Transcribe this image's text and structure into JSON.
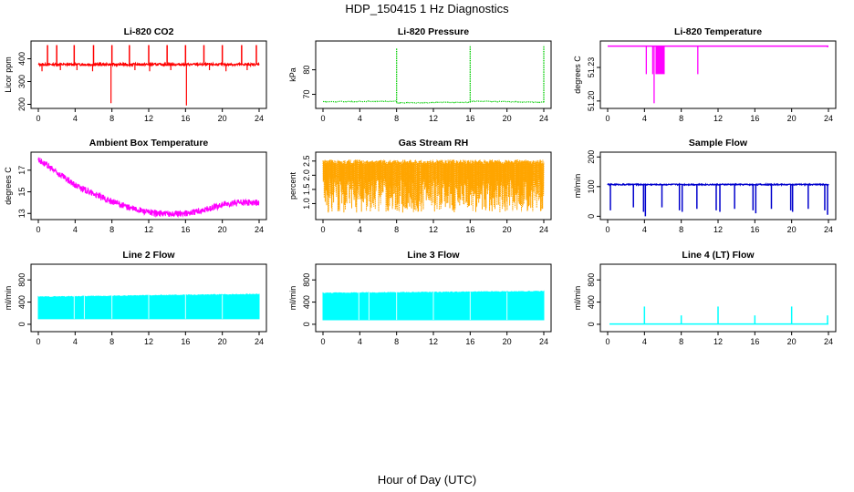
{
  "page": {
    "title": "HDP_150415  1 Hz Diagnostics",
    "xlabel": "Hour of Day (UTC)"
  },
  "chart_data": [
    {
      "id": "co2",
      "type": "line",
      "title": "Li-820 CO2",
      "ylabel": "Licor ppm",
      "xlim": [
        0,
        24
      ],
      "xticks": [
        0,
        4,
        8,
        12,
        16,
        20,
        24
      ],
      "ylim": [
        190,
        470
      ],
      "yticks": [
        200,
        300,
        400
      ],
      "color": "#ff0000",
      "baseline": 375,
      "noise": 5,
      "spikes": [
        [
          1.0,
          460
        ],
        [
          2.0,
          460
        ],
        [
          3.9,
          460
        ],
        [
          6.0,
          460
        ],
        [
          8.0,
          460
        ],
        [
          9.9,
          460
        ],
        [
          12.0,
          460
        ],
        [
          14.0,
          460
        ],
        [
          16.0,
          460
        ],
        [
          18.0,
          460
        ],
        [
          20.0,
          460
        ],
        [
          22.1,
          460
        ],
        [
          23.7,
          460
        ]
      ],
      "dips": [
        [
          0.4,
          345
        ],
        [
          2.4,
          350
        ],
        [
          4.2,
          350
        ],
        [
          5.9,
          345
        ],
        [
          7.9,
          205
        ],
        [
          10.5,
          350
        ],
        [
          12.1,
          345
        ],
        [
          14.4,
          350
        ],
        [
          16.1,
          195
        ],
        [
          18.6,
          350
        ],
        [
          20.4,
          345
        ],
        [
          22.7,
          350
        ]
      ]
    },
    {
      "id": "pressure",
      "type": "line",
      "title": "Li-820 Pressure",
      "ylabel": "kPa",
      "xlim": [
        0,
        24
      ],
      "xticks": [
        0,
        4,
        8,
        12,
        16,
        20,
        24
      ],
      "ylim": [
        65,
        91
      ],
      "yticks": [
        70,
        80
      ],
      "color": "#00cc00",
      "segments": [
        [
          0,
          8,
          67.0,
          67.2
        ],
        [
          8,
          16,
          66.5,
          66.8
        ],
        [
          16,
          24,
          67.2,
          66.8
        ]
      ],
      "spikes": [
        [
          8.0,
          89
        ],
        [
          16.0,
          90
        ],
        [
          24.0,
          90
        ]
      ]
    },
    {
      "id": "licor-temp",
      "type": "line",
      "title": "Li-820 Temperature",
      "ylabel": "degrees C",
      "xlim": [
        0,
        24
      ],
      "xticks": [
        0,
        4,
        8,
        12,
        16,
        20,
        24
      ],
      "ylim": [
        51.195,
        51.252
      ],
      "yticks": [
        51.2,
        51.23
      ],
      "color": "#ff00ff",
      "baseline": 51.249,
      "drops": [
        [
          4.2,
          51.224
        ],
        [
          4.9,
          51.224
        ],
        [
          5.05,
          51.198
        ],
        [
          9.8,
          51.224
        ],
        [
          23.9,
          51.248
        ]
      ],
      "block": [
        5.2,
        6.2,
        51.224
      ]
    },
    {
      "id": "ambient-temp",
      "type": "line",
      "title": "Ambient Box Temperature",
      "ylabel": "degrees C",
      "xlim": [
        0,
        24
      ],
      "xticks": [
        0,
        4,
        8,
        12,
        16,
        20,
        24
      ],
      "ylim": [
        12.6,
        18.5
      ],
      "yticks": [
        13,
        15,
        17
      ],
      "color": "#ff00ff",
      "trend": [
        [
          0,
          18.0
        ],
        [
          2,
          16.8
        ],
        [
          4,
          15.6
        ],
        [
          6,
          14.8
        ],
        [
          8,
          14.1
        ],
        [
          10,
          13.5
        ],
        [
          12,
          13.1
        ],
        [
          14,
          12.95
        ],
        [
          16,
          13.0
        ],
        [
          18,
          13.3
        ],
        [
          20,
          13.8
        ],
        [
          22,
          14.0
        ],
        [
          24,
          14.0
        ]
      ],
      "noise": 0.3
    },
    {
      "id": "gas-rh",
      "type": "line",
      "title": "Gas Stream RH",
      "ylabel": "percent",
      "xlim": [
        0,
        24
      ],
      "xticks": [
        0,
        4,
        8,
        12,
        16,
        20,
        24
      ],
      "ylim": [
        0.5,
        2.75
      ],
      "yticks": [
        1.0,
        1.5,
        2.0,
        2.5
      ],
      "color": "#ffa500",
      "top": 2.55,
      "low_mean": 1.4,
      "low_min": 0.6
    },
    {
      "id": "sample-flow",
      "type": "line",
      "title": "Sample Flow",
      "ylabel": "ml/min",
      "xlim": [
        0,
        24
      ],
      "xticks": [
        0,
        4,
        8,
        12,
        16,
        20,
        24
      ],
      "ylim": [
        -5,
        210
      ],
      "yticks": [
        0,
        100,
        200
      ],
      "color": "#0000cd",
      "baseline": 107,
      "noise": 2,
      "dips": [
        [
          0.3,
          20
        ],
        [
          2.8,
          30
        ],
        [
          3.9,
          15
        ],
        [
          4.1,
          0
        ],
        [
          5.9,
          30
        ],
        [
          7.8,
          20
        ],
        [
          8.1,
          15
        ],
        [
          9.7,
          25
        ],
        [
          11.8,
          20
        ],
        [
          12.2,
          15
        ],
        [
          13.8,
          25
        ],
        [
          15.8,
          20
        ],
        [
          16.1,
          10
        ],
        [
          17.8,
          25
        ],
        [
          19.9,
          20
        ],
        [
          20.1,
          15
        ],
        [
          21.8,
          25
        ],
        [
          23.6,
          20
        ],
        [
          23.9,
          5
        ]
      ]
    },
    {
      "id": "line2-flow",
      "type": "area",
      "title": "Line 2 Flow",
      "ylabel": "ml/min",
      "xlim": [
        0,
        24
      ],
      "xticks": [
        0,
        4,
        8,
        12,
        16,
        20,
        24
      ],
      "ylim": [
        -100,
        1050
      ],
      "yticks": [
        0,
        400,
        800
      ],
      "color": "#00ffff",
      "low": 100,
      "high_start": 490,
      "high_end": 540,
      "gaps": [
        3.9,
        5.0,
        8.0,
        12.0,
        16.0,
        20.0
      ],
      "spikes": [
        [
          23.9,
          480
        ]
      ]
    },
    {
      "id": "line3-flow",
      "type": "area",
      "title": "Line 3 Flow",
      "ylabel": "ml/min",
      "xlim": [
        0,
        24
      ],
      "xticks": [
        0,
        4,
        8,
        12,
        16,
        20,
        24
      ],
      "ylim": [
        -100,
        1050
      ],
      "yticks": [
        0,
        400,
        800
      ],
      "color": "#00ffff",
      "low": 80,
      "high_start": 560,
      "high_end": 590,
      "gaps": [
        3.9,
        5.0,
        8.0,
        12.0,
        16.0,
        20.0
      ],
      "spikes": [
        [
          23.9,
          420
        ]
      ]
    },
    {
      "id": "line4-flow",
      "type": "line",
      "title": "Line 4 (LT) Flow",
      "ylabel": "ml/min",
      "xlim": [
        0,
        24
      ],
      "xticks": [
        0,
        4,
        8,
        12,
        16,
        20,
        24
      ],
      "ylim": [
        -100,
        1050
      ],
      "yticks": [
        0,
        400,
        800
      ],
      "color": "#00ffff",
      "baseline": 5,
      "spikes": [
        [
          4.0,
          320
        ],
        [
          8.0,
          160
        ],
        [
          12.0,
          320
        ],
        [
          16.0,
          160
        ],
        [
          20.0,
          320
        ],
        [
          23.9,
          160
        ]
      ]
    }
  ]
}
